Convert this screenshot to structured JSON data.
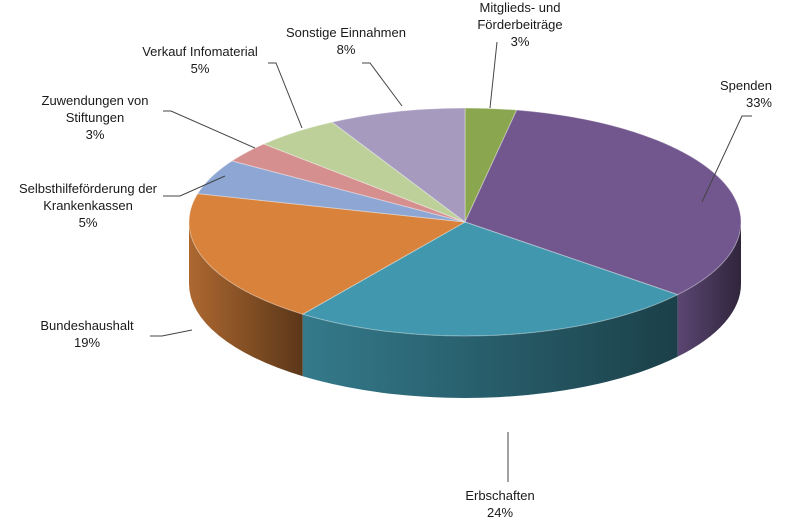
{
  "chart_data": {
    "type": "pie",
    "title": "",
    "slices": [
      {
        "label": "Mitglieds- und\nFörderbeiträge",
        "value": 3,
        "display": "3%",
        "color": "#8aa64e"
      },
      {
        "label": "Spenden",
        "value": 33,
        "display": "33%",
        "color": "#72578e"
      },
      {
        "label": "Erbschaften",
        "value": 24,
        "display": "24%",
        "color": "#4198ae"
      },
      {
        "label": "Bundeshaushalt",
        "value": 19,
        "display": "19%",
        "color": "#d8823c"
      },
      {
        "label": "Selbsthilfeförderung der\nKrankenkassen",
        "value": 5,
        "display": "5%",
        "color": "#8ea6d3"
      },
      {
        "label": "Zuwendungen von\nStiftungen",
        "value": 3,
        "display": "3%",
        "color": "#d68f8f"
      },
      {
        "label": "Verkauf Infomaterial",
        "value": 5,
        "display": "5%",
        "color": "#bdd09a"
      },
      {
        "label": "Sonstige Einnahmen",
        "value": 8,
        "display": "8%",
        "color": "#a79abf"
      }
    ],
    "legend": "none",
    "three_d": true
  }
}
